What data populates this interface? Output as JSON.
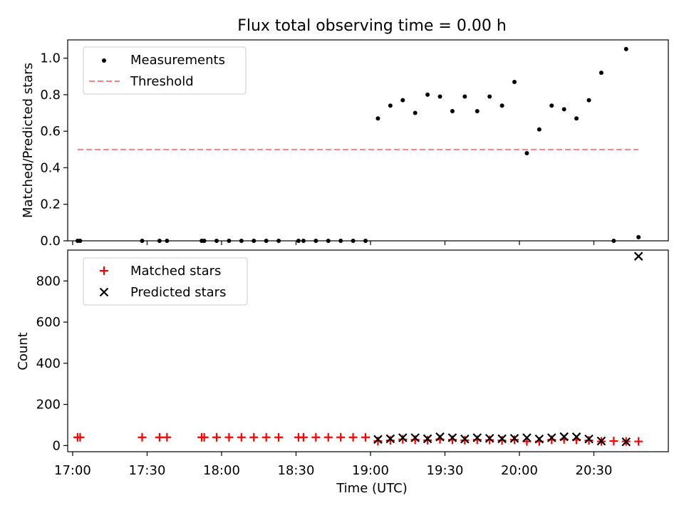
{
  "chart_data": {
    "title": "Flux total observing time = 0.00 h",
    "xlabel": "Time (UTC)",
    "x_ticks": [
      "17:00",
      "17:30",
      "18:00",
      "18:30",
      "19:00",
      "19:30",
      "20:00",
      "20:30"
    ],
    "xlim": [
      "16:58",
      "21:00"
    ],
    "colors": {
      "measurements": "#000000",
      "threshold": "#ff7f7f",
      "matched": "#ff0000",
      "predicted": "#000000"
    },
    "panels": [
      {
        "type": "scatter",
        "ylabel": "Matched/Predicted stars",
        "ylim": [
          0,
          1.1
        ],
        "y_ticks": [
          "0.0",
          "0.2",
          "0.4",
          "0.6",
          "0.8",
          "1.0"
        ],
        "legend_position": "top-left",
        "series": [
          {
            "name": "Measurements",
            "style": "dot",
            "x": [
              "17:02",
              "17:03",
              "17:28",
              "17:35",
              "17:38",
              "17:52",
              "17:53",
              "17:58",
              "18:03",
              "18:08",
              "18:13",
              "18:18",
              "18:23",
              "18:31",
              "18:33",
              "18:38",
              "18:43",
              "18:48",
              "18:53",
              "18:58",
              "19:03",
              "19:08",
              "19:13",
              "19:18",
              "19:23",
              "19:28",
              "19:33",
              "19:38",
              "19:43",
              "19:48",
              "19:53",
              "19:58",
              "20:03",
              "20:08",
              "20:13",
              "20:18",
              "20:23",
              "20:28",
              "20:33",
              "20:38",
              "20:43",
              "20:48"
            ],
            "y": [
              0,
              0,
              0,
              0,
              0,
              0,
              0,
              0,
              0,
              0,
              0,
              0,
              0,
              0,
              0,
              0,
              0,
              0,
              0,
              0,
              0.67,
              0.74,
              0.77,
              0.7,
              0.8,
              0.79,
              0.71,
              0.79,
              0.71,
              0.79,
              0.74,
              0.87,
              0.48,
              0.61,
              0.74,
              0.72,
              0.67,
              0.77,
              0.92,
              0.0,
              1.05,
              0.02
            ]
          },
          {
            "name": "Threshold",
            "style": "dashed-line",
            "x": [
              "17:02",
              "20:48"
            ],
            "y": [
              0.5,
              0.5
            ]
          }
        ]
      },
      {
        "type": "scatter",
        "ylabel": "Count",
        "ylim": [
          -30,
          950
        ],
        "y_ticks": [
          "0",
          "200",
          "400",
          "600",
          "800"
        ],
        "legend_position": "top-left",
        "series": [
          {
            "name": "Matched stars",
            "style": "plus",
            "x": [
              "17:02",
              "17:03",
              "17:28",
              "17:35",
              "17:38",
              "17:52",
              "17:53",
              "17:58",
              "18:03",
              "18:08",
              "18:13",
              "18:18",
              "18:23",
              "18:31",
              "18:33",
              "18:38",
              "18:43",
              "18:48",
              "18:53",
              "18:58",
              "19:03",
              "19:08",
              "19:13",
              "19:18",
              "19:23",
              "19:28",
              "19:33",
              "19:38",
              "19:43",
              "19:48",
              "19:53",
              "19:58",
              "20:03",
              "20:08",
              "20:13",
              "20:18",
              "20:23",
              "20:28",
              "20:33",
              "20:38",
              "20:43",
              "20:48"
            ],
            "y": [
              40,
              40,
              40,
              40,
              40,
              40,
              40,
              40,
              40,
              40,
              40,
              40,
              40,
              40,
              40,
              40,
              40,
              40,
              40,
              40,
              22,
              25,
              30,
              28,
              26,
              30,
              28,
              26,
              28,
              27,
              25,
              28,
              20,
              20,
              28,
              30,
              28,
              25,
              20,
              22,
              20,
              20
            ]
          },
          {
            "name": "Predicted stars",
            "style": "x",
            "x": [
              "19:03",
              "19:08",
              "19:13",
              "19:18",
              "19:23",
              "19:28",
              "19:33",
              "19:38",
              "19:43",
              "19:48",
              "19:53",
              "19:58",
              "20:03",
              "20:08",
              "20:13",
              "20:18",
              "20:23",
              "20:28",
              "20:33",
              "20:43",
              "20:48"
            ],
            "y": [
              30,
              33,
              38,
              38,
              33,
              42,
              38,
              32,
              38,
              35,
              33,
              35,
              38,
              32,
              38,
              43,
              42,
              32,
              22,
              18,
              920
            ]
          }
        ]
      }
    ]
  }
}
